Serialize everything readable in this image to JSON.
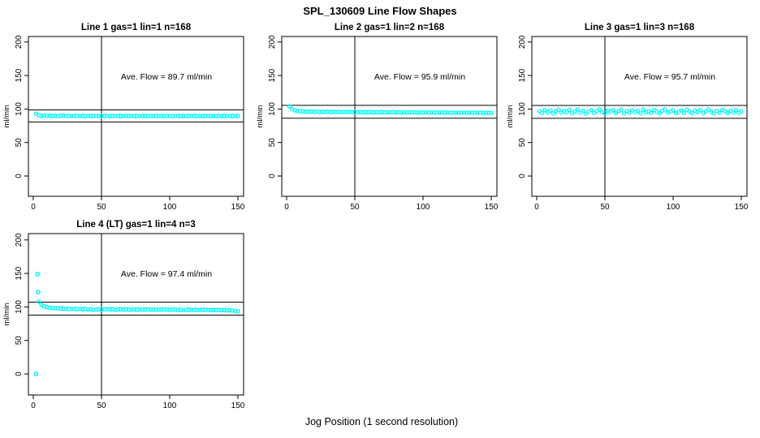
{
  "title": "SPL_130609  Line Flow Shapes",
  "xlabel": "Jog Position (1 second resolution)",
  "colors": {
    "points": "#00ffff",
    "axis": "#000000",
    "background": "#ffffff",
    "text": "#000000"
  },
  "axes": {
    "x_ticks": [
      0,
      50,
      100,
      150
    ],
    "y_ticks": [
      0,
      50,
      100,
      150,
      200
    ],
    "y_axis_label": "ml/min",
    "xlim": [
      -4,
      154.5
    ],
    "ylim": [
      -28,
      208
    ],
    "vline_x": 50,
    "grid": "off",
    "legend": "none"
  },
  "chart_data": [
    {
      "type": "scatter",
      "title": "Line 1 gas=1 lin=1 n=168",
      "annotation": "Ave. Flow =  89.7  ml/min",
      "avg_flow_ml_min": 89.7,
      "n": 168,
      "ref_lines": [
        98.7,
        80.7
      ],
      "vline_x": 50,
      "x_start": 2,
      "x_step": 2,
      "y": [
        93.2,
        90.6,
        90.1,
        90.3,
        89.8,
        90.2,
        89.6,
        90.0,
        89.5,
        89.9,
        90.2,
        89.6,
        90.0,
        89.4,
        89.8,
        90.1,
        89.5,
        89.9,
        89.4,
        89.7,
        90.0,
        89.5,
        89.8,
        89.3,
        89.9,
        89.6,
        90.0,
        89.4,
        89.8,
        89.5,
        89.9,
        89.3,
        89.7,
        90.0,
        89.5,
        89.8,
        89.4,
        89.7,
        89.3,
        89.9,
        89.6,
        89.2,
        89.8,
        89.5,
        89.9,
        89.4,
        89.7,
        89.3,
        89.8,
        89.5,
        89.2,
        89.7,
        89.9,
        89.4,
        89.6,
        89.3,
        89.8,
        89.5,
        89.9,
        89.4,
        89.7,
        89.2,
        89.6,
        89.8,
        89.3,
        89.7,
        89.4,
        89.8,
        89.3,
        89.6,
        89.9,
        89.4,
        89.7,
        89.3,
        89.6
      ],
      "extra_points": []
    },
    {
      "type": "scatter",
      "title": "Line 2 gas=1 lin=2 n=168",
      "annotation": "Ave. Flow =  95.9  ml/min",
      "avg_flow_ml_min": 95.9,
      "n": 168,
      "ref_lines": [
        105.5,
        86.3
      ],
      "vline_x": 50,
      "x_start": 2,
      "x_step": 2,
      "y": [
        104.0,
        99.8,
        97.9,
        97.0,
        96.6,
        96.3,
        96.0,
        95.8,
        96.1,
        95.7,
        96.0,
        95.5,
        95.9,
        95.6,
        96.0,
        95.4,
        95.8,
        95.5,
        95.9,
        95.3,
        95.7,
        95.4,
        95.8,
        95.2,
        95.6,
        95.3,
        95.7,
        95.1,
        95.5,
        95.2,
        95.6,
        95.0,
        95.4,
        95.1,
        95.5,
        94.9,
        95.3,
        95.0,
        95.4,
        94.8,
        95.2,
        94.9,
        95.3,
        94.7,
        95.1,
        94.8,
        95.2,
        94.6,
        95.0,
        94.7,
        95.1,
        94.5,
        94.9,
        94.6,
        95.0,
        94.4,
        94.8,
        94.5,
        94.9,
        94.3,
        94.7,
        94.4,
        94.8,
        94.2,
        94.6,
        94.3,
        94.7,
        94.1,
        94.5,
        94.2,
        94.6,
        94.0,
        94.4,
        94.1,
        94.5
      ],
      "extra_points": []
    },
    {
      "type": "scatter",
      "title": "Line 3 gas=1 lin=3 n=168",
      "annotation": "Ave. Flow =  95.7  ml/min",
      "avg_flow_ml_min": 95.7,
      "n": 168,
      "ref_lines": [
        105.3,
        86.1
      ],
      "vline_x": 50,
      "x_start": 2,
      "x_step": 2,
      "y": [
        96.5,
        94.0,
        98.5,
        95.0,
        97.8,
        93.5,
        96.8,
        99.0,
        94.5,
        97.2,
        95.5,
        98.8,
        93.8,
        96.2,
        99.2,
        94.8,
        97.5,
        93.2,
        96.0,
        98.2,
        94.2,
        97.0,
        99.5,
        95.2,
        93.6,
        97.8,
        95.8,
        98.5,
        94.0,
        96.5,
        99.0,
        93.4,
        96.8,
        94.6,
        98.0,
        95.4,
        97.4,
        93.8,
        99.2,
        95.0,
        96.6,
        94.2,
        98.6,
        96.0,
        93.5,
        97.2,
        99.4,
        94.8,
        96.4,
        98.0,
        93.9,
        95.6,
        97.8,
        94.4,
        99.0,
        96.2,
        93.6,
        97.6,
        95.2,
        98.4,
        94.0,
        96.8,
        99.2,
        95.8,
        93.4,
        97.0,
        94.6,
        98.8,
        96.4,
        93.8,
        97.4,
        95.0,
        98.2,
        94.4,
        96.6
      ],
      "extra_points": []
    },
    {
      "type": "scatter",
      "title": "Line 4 (LT) gas=1 lin=4 n=3",
      "annotation": "Ave. Flow =  97.4  ml/min",
      "avg_flow_ml_min": 97.4,
      "n": 3,
      "ref_lines": [
        107.1,
        87.7
      ],
      "vline_x": 50,
      "x_start": 4,
      "x_step": 2,
      "y": [
        108.0,
        103.0,
        100.8,
        99.6,
        98.9,
        98.3,
        97.9,
        98.1,
        97.6,
        97.3,
        97.7,
        97.1,
        96.9,
        97.4,
        96.6,
        97.1,
        96.4,
        96.9,
        95.9,
        96.5,
        95.6,
        96.1,
        96.6,
        95.9,
        96.3,
        96.7,
        96.1,
        96.5,
        95.8,
        96.2,
        96.6,
        96.0,
        96.4,
        95.7,
        96.1,
        96.5,
        95.9,
        96.3,
        95.6,
        96.0,
        96.4,
        95.8,
        96.2,
        95.5,
        95.9,
        96.3,
        95.7,
        96.1,
        95.4,
        95.8,
        96.2,
        95.6,
        96.0,
        95.3,
        95.7,
        96.1,
        95.5,
        95.9,
        95.2,
        95.6,
        96.0,
        95.4,
        95.8,
        95.1,
        95.5,
        95.3,
        95.7,
        94.9,
        95.3,
        94.7,
        95.1,
        94.5,
        94.1,
        93.5
      ],
      "extra_points": [
        [
          2,
          0
        ],
        [
          3,
          149
        ],
        [
          3.5,
          122
        ]
      ]
    }
  ]
}
